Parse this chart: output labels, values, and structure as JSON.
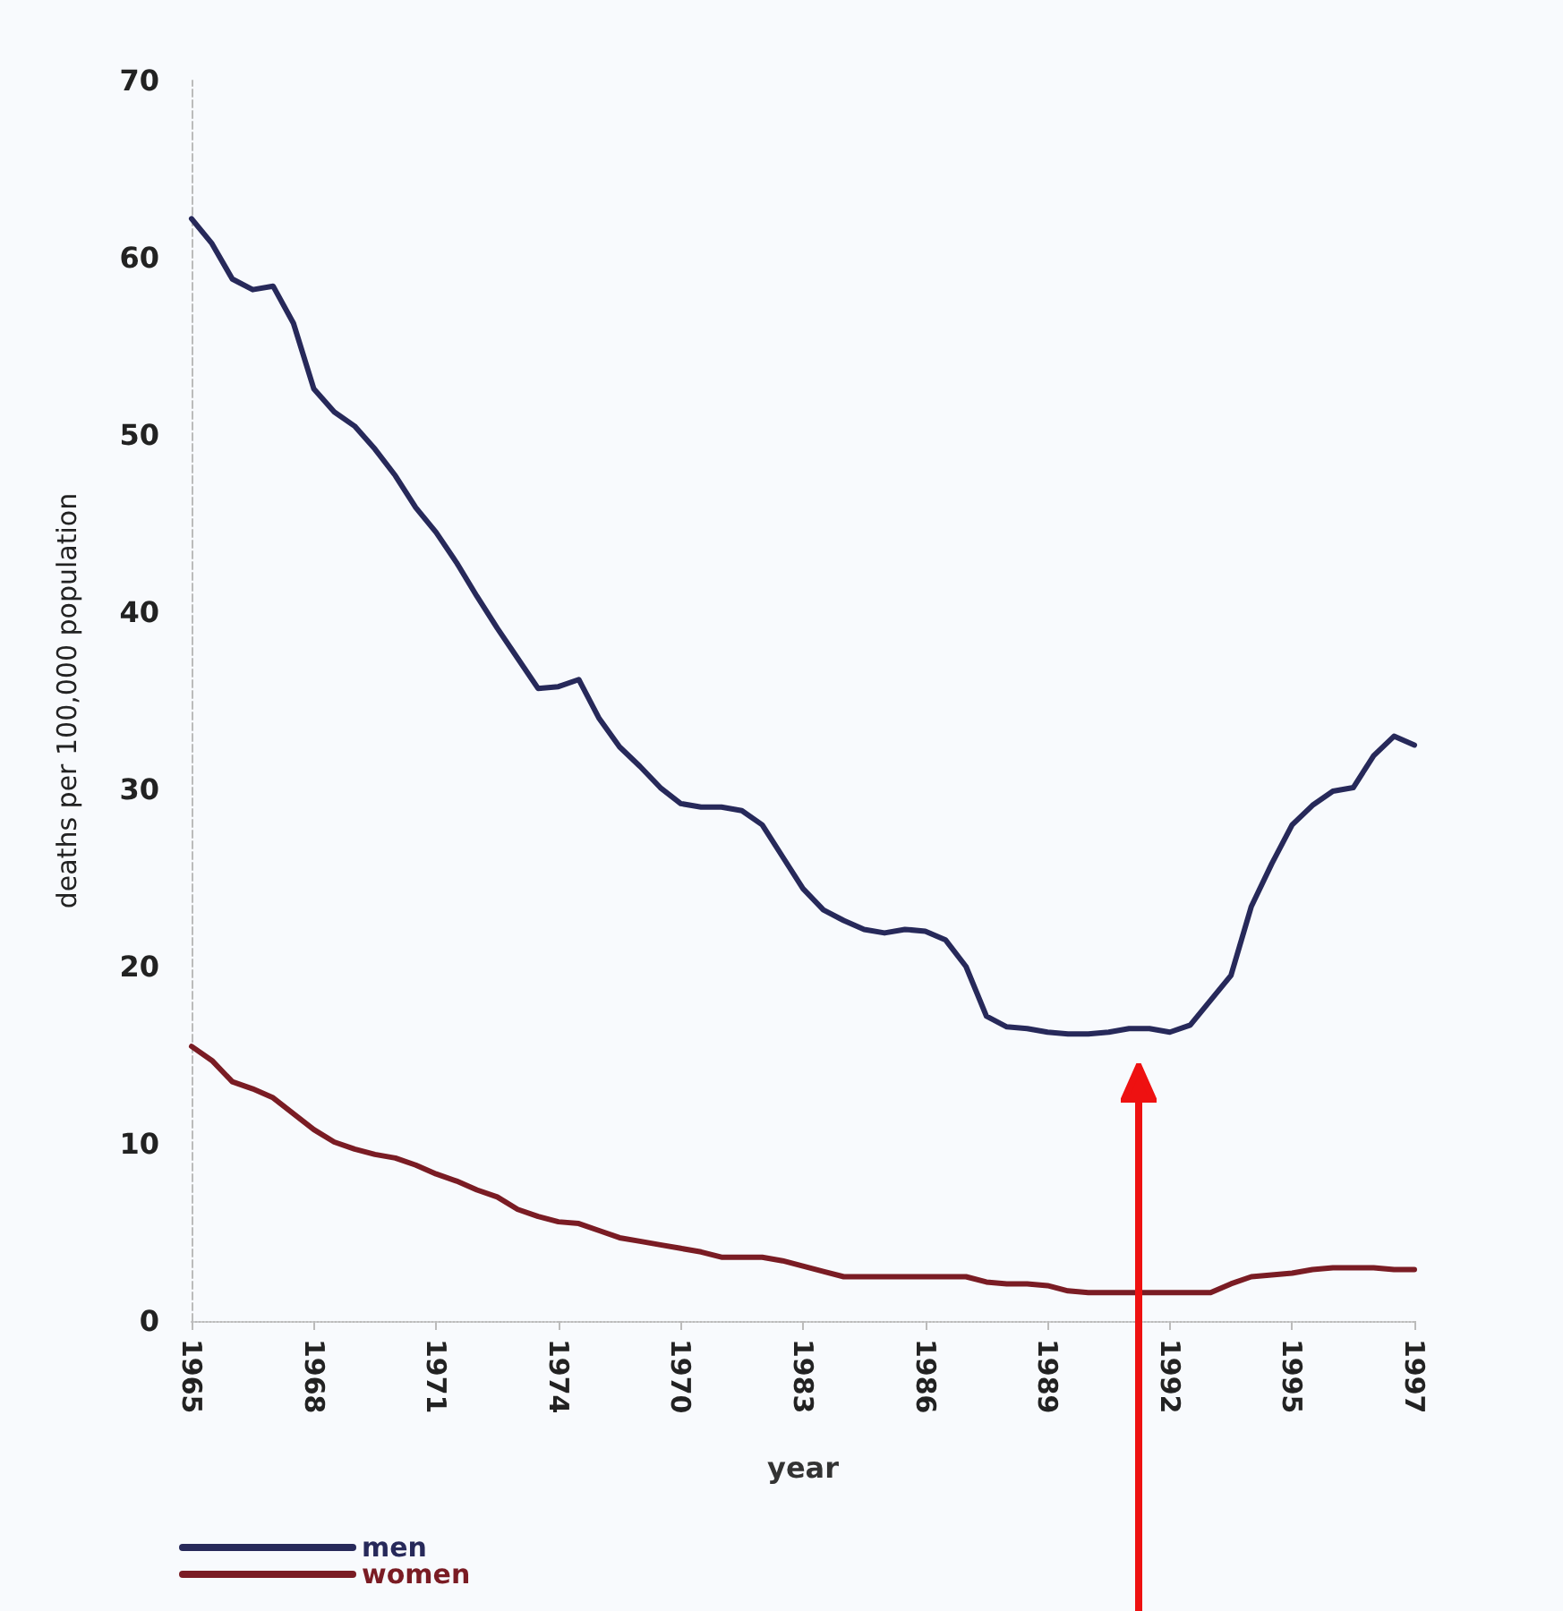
{
  "chart_data": {
    "type": "line",
    "xlabel": "year",
    "ylabel": "deaths per 100,000 population",
    "ylim": [
      0,
      70
    ],
    "yticks": [
      0,
      10,
      20,
      30,
      40,
      50,
      60,
      70
    ],
    "categories": [
      "1965",
      null,
      null,
      null,
      null,
      null,
      "1968",
      null,
      null,
      null,
      null,
      null,
      "1971",
      null,
      null,
      null,
      null,
      null,
      "1974",
      null,
      null,
      null,
      null,
      null,
      "1970",
      null,
      null,
      null,
      null,
      null,
      "1983",
      null,
      null,
      null,
      null,
      null,
      "1986",
      null,
      null,
      null,
      null,
      null,
      "1989",
      null,
      null,
      null,
      null,
      null,
      "1992",
      null,
      null,
      null,
      null,
      null,
      "1995",
      null,
      null,
      null,
      null,
      null,
      "1997"
    ],
    "grid": false,
    "legend": "bottom left",
    "marker": "none",
    "line_style": "solid",
    "series": [
      {
        "name": "men",
        "color": "#27295a",
        "values": [
          62.2,
          60.8,
          58.8,
          58.2,
          58.4,
          56.3,
          52.6,
          51.3,
          50.5,
          49.2,
          47.7,
          45.9,
          44.5,
          42.8,
          40.9,
          39.1,
          37.4,
          35.7,
          35.8,
          36.2,
          34.0,
          32.4,
          31.3,
          30.1,
          29.2,
          29.0,
          29.0,
          28.8,
          28.0,
          26.2,
          24.4,
          23.2,
          22.6,
          22.1,
          21.9,
          22.1,
          22.0,
          21.5,
          20.0,
          17.2,
          16.6,
          16.5,
          16.3,
          16.2,
          16.2,
          16.3,
          16.5,
          16.5,
          16.3,
          16.7,
          18.1,
          19.5,
          23.4,
          25.8,
          28.0,
          29.1,
          29.9,
          30.1,
          31.9,
          33.0,
          32.5
        ]
      },
      {
        "name": "women",
        "color": "#7a1c24",
        "values": [
          15.5,
          14.7,
          13.5,
          13.1,
          12.6,
          11.7,
          10.8,
          10.1,
          9.7,
          9.4,
          9.2,
          8.8,
          8.3,
          7.9,
          7.4,
          7.0,
          6.3,
          5.9,
          5.6,
          5.5,
          5.1,
          4.7,
          4.5,
          4.3,
          4.1,
          3.9,
          3.6,
          3.6,
          3.6,
          3.4,
          3.1,
          2.8,
          2.5,
          2.5,
          2.5,
          2.5,
          2.5,
          2.5,
          2.5,
          2.2,
          2.1,
          2.1,
          2.0,
          1.7,
          1.6,
          1.6,
          1.6,
          1.6,
          1.6,
          1.6,
          1.6,
          2.1,
          2.5,
          2.6,
          2.7,
          2.9,
          3.0,
          3.0,
          3.0,
          2.9,
          2.9
        ]
      }
    ]
  }
}
